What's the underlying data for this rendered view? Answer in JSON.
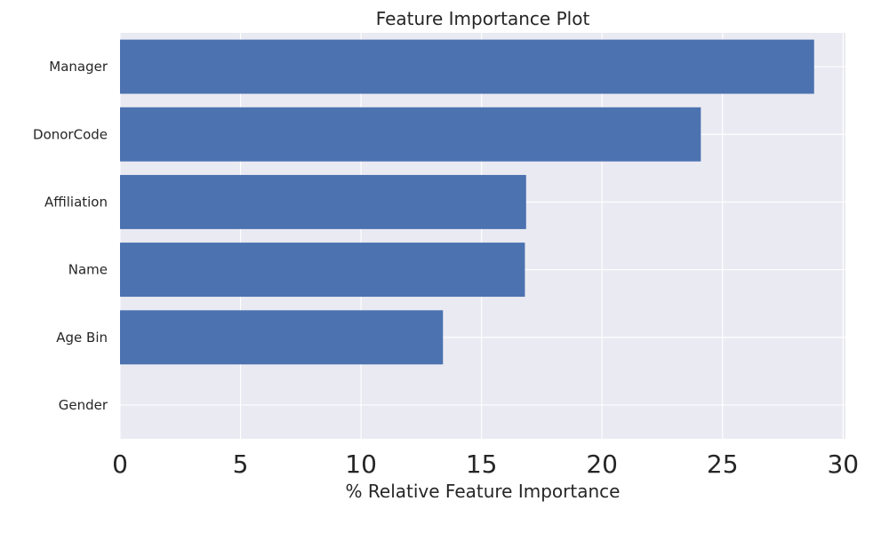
{
  "chart_data": {
    "type": "bar",
    "orientation": "horizontal",
    "title": "Feature Importance Plot",
    "xlabel": "% Relative Feature Importance",
    "ylabel": "",
    "categories": [
      "Manager",
      "DonorCode",
      "Affiliation",
      "Name",
      "Age Bin",
      "Gender"
    ],
    "values": [
      28.8,
      24.1,
      16.85,
      16.8,
      13.4,
      0.0
    ],
    "xlim": [
      0,
      30.1
    ],
    "xticks": [
      0,
      5,
      10,
      15,
      20,
      25,
      30
    ],
    "grid": true,
    "colors": {
      "bar": "#4c72b0",
      "plot_background": "#eaeaf2",
      "grid": "#ffffff",
      "text": "#262626"
    }
  }
}
